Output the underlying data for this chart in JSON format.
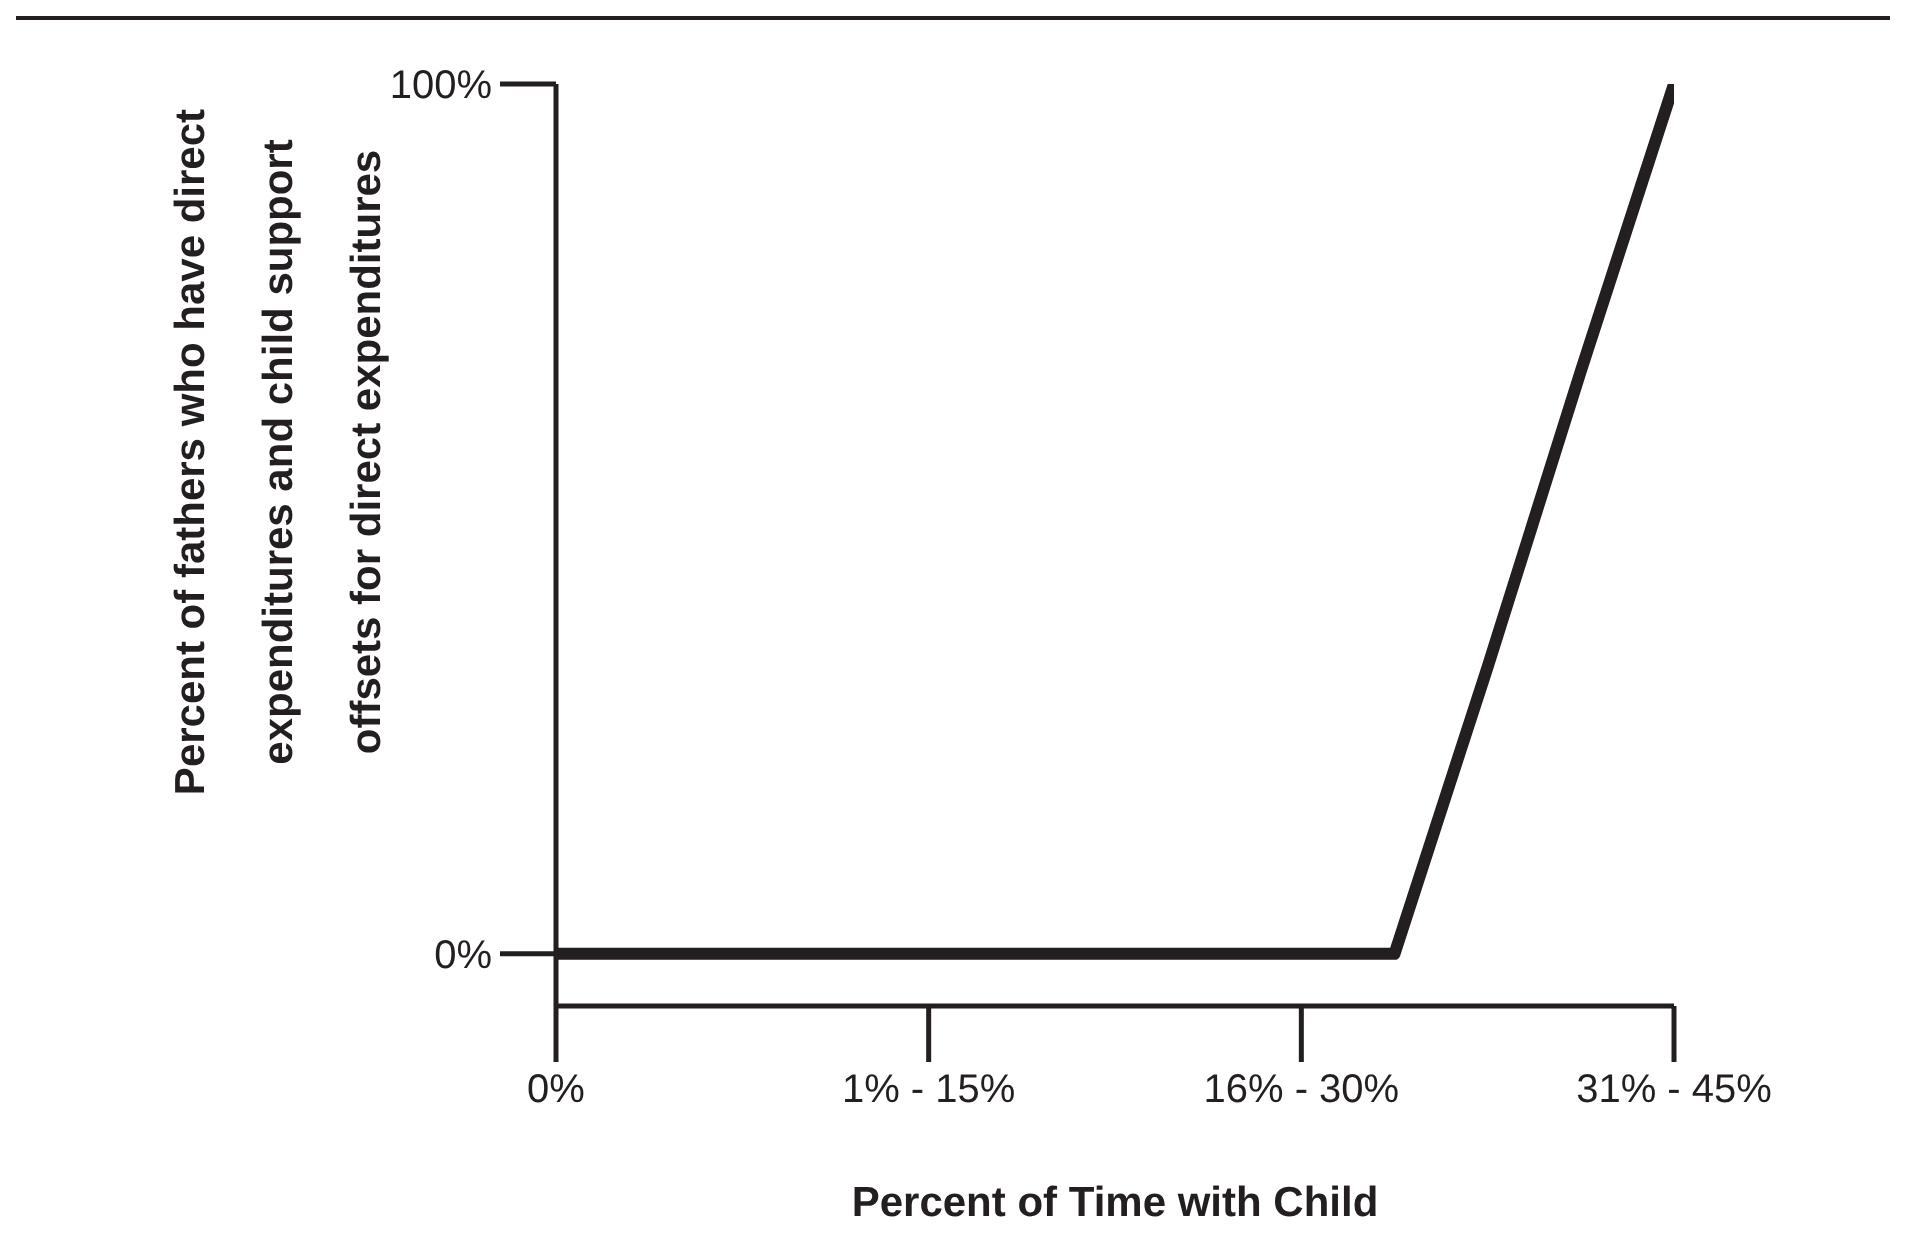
{
  "chart_data": {
    "type": "line",
    "xlabel": "Percent of Time with Child",
    "ylabel": "Percent of fathers who have direct expenditures and child support offsets for direct expenditures",
    "categories": [
      "0%",
      null,
      null,
      null,
      "1% - 15%",
      null,
      null,
      null,
      "16% - 30%",
      null,
      null,
      null,
      "31% - 45%"
    ],
    "series": [
      {
        "color": "#231f20",
        "values": [
          0,
          0,
          0,
          0,
          0,
          0,
          0,
          0,
          0,
          0,
          33,
          67,
          100
        ]
      }
    ],
    "ylim": [
      -6,
      100
    ],
    "yticks": [
      {
        "value": 0,
        "label": "0%"
      },
      {
        "value": 100,
        "label": "100%"
      }
    ],
    "marker": "none",
    "line_style": "solid"
  }
}
